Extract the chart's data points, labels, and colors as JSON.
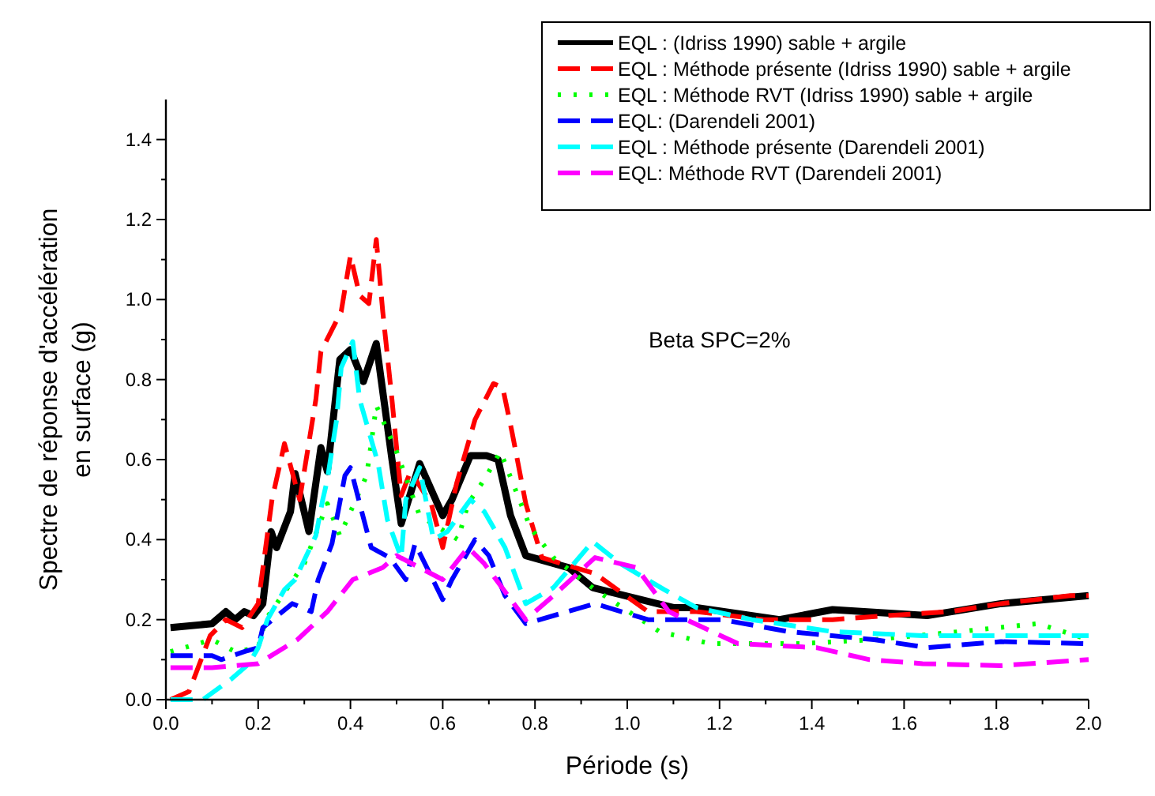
{
  "chart_data": {
    "type": "line",
    "xlabel": "Période (s)",
    "ylabel": "Spectre de réponse d'accélération en surface (g)",
    "xlim": [
      0,
      2
    ],
    "ylim": [
      0,
      1.5
    ],
    "xticks": [
      {
        "value": 0,
        "label": "0.0"
      },
      {
        "value": 0.1,
        "label": null
      },
      {
        "value": 0.2,
        "label": "0.2"
      },
      {
        "value": 0.3,
        "label": null
      },
      {
        "value": 0.4,
        "label": "0.4"
      },
      {
        "value": 0.5,
        "label": null
      },
      {
        "value": 0.6,
        "label": "0.6"
      },
      {
        "value": 0.7,
        "label": null
      },
      {
        "value": 0.8,
        "label": "0.8"
      },
      {
        "value": 0.9,
        "label": null
      },
      {
        "value": 1,
        "label": "1.0"
      },
      {
        "value": 1.1,
        "label": null
      },
      {
        "value": 1.2,
        "label": "1.2"
      },
      {
        "value": 1.3,
        "label": null
      },
      {
        "value": 1.4,
        "label": "1.4"
      },
      {
        "value": 1.5,
        "label": null
      },
      {
        "value": 1.6,
        "label": "1.6"
      },
      {
        "value": 1.7,
        "label": null
      },
      {
        "value": 1.8,
        "label": "1.8"
      },
      {
        "value": 1.9,
        "label": null
      },
      {
        "value": 2,
        "label": "2.0"
      }
    ],
    "yticks": [
      {
        "value": 0,
        "label": "0.0"
      },
      {
        "value": 0.1,
        "label": null
      },
      {
        "value": 0.2,
        "label": "0.2"
      },
      {
        "value": 0.3,
        "label": null
      },
      {
        "value": 0.4,
        "label": "0.4"
      },
      {
        "value": 0.5,
        "label": null
      },
      {
        "value": 0.6,
        "label": "0.6"
      },
      {
        "value": 0.7,
        "label": null
      },
      {
        "value": 0.8,
        "label": "0.8"
      },
      {
        "value": 0.9,
        "label": null
      },
      {
        "value": 1,
        "label": "1.0"
      },
      {
        "value": 1.1,
        "label": null
      },
      {
        "value": 1.2,
        "label": "1.2"
      },
      {
        "value": 1.3,
        "label": null
      },
      {
        "value": 1.4,
        "label": "1.4"
      }
    ],
    "grid": false,
    "legend": "top right",
    "annotations": [
      "Beta SPC=2%"
    ],
    "series": [
      {
        "name": "EQL : (Idriss 1990) sable + argile",
        "color": "#000000",
        "line_style": "solid",
        "x": [
          0.01,
          0.1,
          0.13,
          0.15,
          0.17,
          0.19,
          0.21,
          0.228,
          0.24,
          0.27,
          0.28,
          0.31,
          0.336,
          0.35,
          0.377,
          0.4,
          0.428,
          0.456,
          0.49,
          0.51,
          0.55,
          0.6,
          0.62,
          0.66,
          0.695,
          0.72,
          0.747,
          0.78,
          0.873,
          0.925,
          1.1,
          1.15,
          1.33,
          1.445,
          1.65,
          1.81,
          2.0
        ],
        "values": [
          0.18,
          0.19,
          0.22,
          0.2,
          0.22,
          0.21,
          0.24,
          0.42,
          0.38,
          0.47,
          0.565,
          0.42,
          0.63,
          0.57,
          0.85,
          0.875,
          0.795,
          0.89,
          0.6,
          0.44,
          0.59,
          0.46,
          0.5,
          0.61,
          0.61,
          0.6,
          0.46,
          0.36,
          0.33,
          0.28,
          0.23,
          0.23,
          0.2,
          0.225,
          0.21,
          0.24,
          0.26
        ]
      },
      {
        "name": "EQL : Méthode présente (Idriss 1990) sable + argile",
        "color": "#ff0000",
        "line_style": "dashed",
        "x": [
          0.01,
          0.05,
          0.096,
          0.13,
          0.165,
          0.2,
          0.23,
          0.257,
          0.29,
          0.325,
          0.336,
          0.38,
          0.4,
          0.42,
          0.44,
          0.456,
          0.47,
          0.49,
          0.51,
          0.53,
          0.575,
          0.6,
          0.63,
          0.67,
          0.71,
          0.73,
          0.75,
          0.78,
          0.815,
          0.93,
          1.045,
          1.15,
          1.295,
          1.445,
          1.56,
          1.7,
          1.81,
          1.96,
          2.0
        ],
        "values": [
          0.0,
          0.02,
          0.16,
          0.2,
          0.18,
          0.24,
          0.5,
          0.64,
          0.5,
          0.75,
          0.87,
          0.97,
          1.11,
          1.01,
          0.99,
          1.15,
          0.97,
          0.75,
          0.51,
          0.57,
          0.49,
          0.38,
          0.54,
          0.7,
          0.79,
          0.78,
          0.67,
          0.49,
          0.355,
          0.315,
          0.22,
          0.22,
          0.2,
          0.2,
          0.21,
          0.22,
          0.24,
          0.26,
          0.26
        ]
      },
      {
        "name": "EQL : Méthode RVT (Idriss 1990) sable + argile",
        "color": "#00ff00",
        "line_style": "dotted",
        "x": [
          0.01,
          0.1,
          0.15,
          0.2,
          0.216,
          0.3,
          0.35,
          0.377,
          0.435,
          0.445,
          0.456,
          0.5,
          0.55,
          0.633,
          0.655,
          0.69,
          0.725,
          0.79,
          0.84,
          0.93,
          1.07,
          1.18,
          1.375,
          1.535,
          1.72,
          1.89,
          2.0
        ],
        "values": [
          0.12,
          0.15,
          0.12,
          0.13,
          0.2,
          0.34,
          0.49,
          0.41,
          0.56,
          0.64,
          0.735,
          0.62,
          0.46,
          0.4,
          0.49,
          0.55,
          0.62,
          0.43,
          0.355,
          0.275,
          0.17,
          0.14,
          0.14,
          0.15,
          0.17,
          0.19,
          0.15
        ]
      },
      {
        "name": "EQL: (Darendeli 2001)",
        "color": "#0000ff",
        "line_style": "dashed",
        "x": [
          0.01,
          0.1,
          0.12,
          0.17,
          0.2,
          0.21,
          0.274,
          0.315,
          0.33,
          0.36,
          0.388,
          0.4,
          0.42,
          0.445,
          0.485,
          0.52,
          0.54,
          0.6,
          0.62,
          0.67,
          0.7,
          0.735,
          0.78,
          0.93,
          1.045,
          1.205,
          1.35,
          1.535,
          1.65,
          1.81,
          2.0
        ],
        "values": [
          0.11,
          0.11,
          0.1,
          0.12,
          0.13,
          0.18,
          0.24,
          0.22,
          0.3,
          0.39,
          0.56,
          0.58,
          0.49,
          0.38,
          0.355,
          0.3,
          0.39,
          0.25,
          0.3,
          0.4,
          0.36,
          0.26,
          0.19,
          0.24,
          0.2,
          0.2,
          0.17,
          0.15,
          0.13,
          0.145,
          0.14
        ]
      },
      {
        "name": "EQL : Méthode présente (Darendeli 2001)",
        "color": "#00ffff",
        "line_style": "dashed",
        "x": [
          0.01,
          0.08,
          0.14,
          0.18,
          0.2,
          0.22,
          0.257,
          0.28,
          0.325,
          0.34,
          0.35,
          0.37,
          0.38,
          0.405,
          0.42,
          0.46,
          0.48,
          0.51,
          0.52,
          0.55,
          0.58,
          0.61,
          0.66,
          0.69,
          0.735,
          0.78,
          0.84,
          0.925,
          0.985,
          1.08,
          1.15,
          1.27,
          1.445,
          1.64,
          1.81,
          2.0
        ],
        "values": [
          0.0,
          0.0,
          0.05,
          0.09,
          0.13,
          0.2,
          0.275,
          0.3,
          0.41,
          0.5,
          0.55,
          0.7,
          0.83,
          0.895,
          0.75,
          0.59,
          0.45,
          0.355,
          0.5,
          0.58,
          0.4,
          0.42,
          0.5,
          0.47,
          0.38,
          0.24,
          0.28,
          0.395,
          0.34,
          0.275,
          0.23,
          0.2,
          0.17,
          0.16,
          0.16,
          0.16
        ]
      },
      {
        "name": "EQL: Méthode RVT (Darendeli 2001)",
        "color": "#ff00ff",
        "line_style": "dashed",
        "x": [
          0.01,
          0.1,
          0.15,
          0.2,
          0.285,
          0.35,
          0.405,
          0.47,
          0.5,
          0.6,
          0.655,
          0.69,
          0.78,
          0.84,
          0.93,
          1.02,
          1.09,
          1.24,
          1.41,
          1.525,
          1.64,
          1.81,
          2.0
        ],
        "values": [
          0.08,
          0.08,
          0.085,
          0.09,
          0.15,
          0.22,
          0.3,
          0.33,
          0.36,
          0.3,
          0.38,
          0.34,
          0.2,
          0.26,
          0.355,
          0.33,
          0.22,
          0.14,
          0.13,
          0.1,
          0.09,
          0.085,
          0.1
        ]
      }
    ]
  }
}
